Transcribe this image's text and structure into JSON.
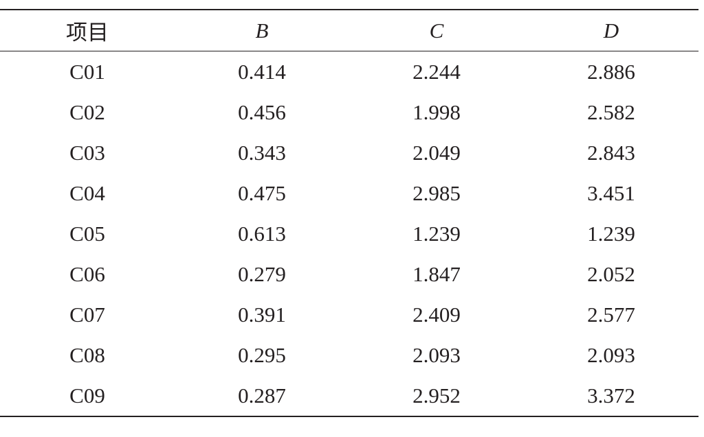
{
  "table": {
    "header": [
      "项目",
      "B",
      "C",
      "D"
    ],
    "rows": [
      [
        "C01",
        "0.414",
        "2.244",
        "2.886"
      ],
      [
        "C02",
        "0.456",
        "1.998",
        "2.582"
      ],
      [
        "C03",
        "0.343",
        "2.049",
        "2.843"
      ],
      [
        "C04",
        "0.475",
        "2.985",
        "3.451"
      ],
      [
        "C05",
        "0.613",
        "1.239",
        "1.239"
      ],
      [
        "C06",
        "0.279",
        "1.847",
        "2.052"
      ],
      [
        "C07",
        "0.391",
        "2.409",
        "2.577"
      ],
      [
        "C08",
        "0.295",
        "2.093",
        "2.093"
      ],
      [
        "C09",
        "0.287",
        "2.952",
        "3.372"
      ]
    ]
  }
}
